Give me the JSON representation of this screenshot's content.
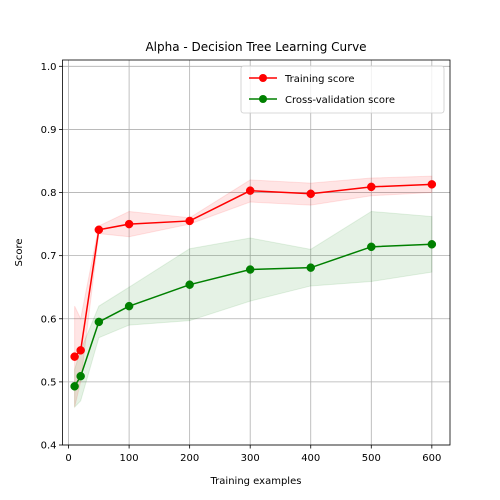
{
  "chart_data": {
    "type": "line",
    "title": "Alpha - Decision Tree Learning Curve",
    "xlabel": "Training examples",
    "ylabel": "Score",
    "xlim": [
      -10,
      630
    ],
    "ylim": [
      0.4,
      1.01
    ],
    "xticks": [
      0,
      100,
      200,
      300,
      400,
      500,
      600
    ],
    "yticks": [
      0.4,
      0.5,
      0.6,
      0.7,
      0.8,
      0.9,
      1.0
    ],
    "grid": true,
    "legend": "top-right",
    "x": [
      10,
      20,
      50,
      100,
      200,
      300,
      400,
      500,
      600
    ],
    "series": [
      {
        "name": "Training score",
        "color": "#ff0000",
        "band_color": "#ff0000",
        "values": [
          0.54,
          0.55,
          0.741,
          0.75,
          0.755,
          0.803,
          0.798,
          0.809,
          0.813
        ],
        "lower": [
          0.46,
          0.5,
          0.735,
          0.73,
          0.75,
          0.785,
          0.78,
          0.795,
          0.8
        ],
        "upper": [
          0.62,
          0.6,
          0.747,
          0.77,
          0.76,
          0.82,
          0.815,
          0.823,
          0.826
        ]
      },
      {
        "name": "Cross-validation score",
        "color": "#008000",
        "band_color": "#008000",
        "values": [
          0.493,
          0.509,
          0.595,
          0.62,
          0.654,
          0.678,
          0.681,
          0.714,
          0.718
        ],
        "lower": [
          0.46,
          0.47,
          0.57,
          0.59,
          0.597,
          0.628,
          0.652,
          0.659,
          0.674
        ],
        "upper": [
          0.52,
          0.55,
          0.62,
          0.65,
          0.711,
          0.728,
          0.71,
          0.77,
          0.762
        ]
      }
    ]
  }
}
